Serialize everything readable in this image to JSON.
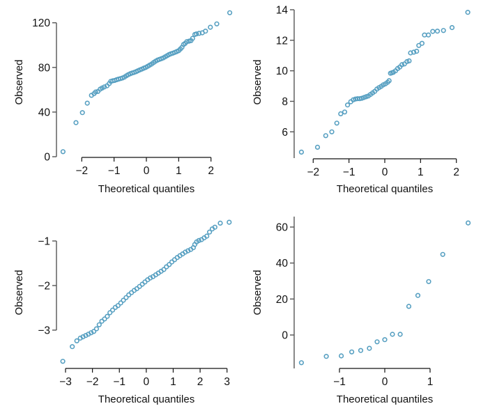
{
  "chart_data": [
    {
      "type": "scatter",
      "title": "",
      "xlabel": "Theoretical quantiles",
      "ylabel": "Observed",
      "xlim": [
        -2.7,
        2.7
      ],
      "ylim": [
        0,
        130
      ],
      "xticks": [
        -2,
        -1,
        0,
        1,
        2
      ],
      "xtick_labels": [
        "−2",
        "−1",
        "0",
        "1",
        "2"
      ],
      "yticks": [
        0,
        40,
        80,
        120
      ],
      "ytick_labels": [
        "0",
        "40",
        "80",
        "120"
      ],
      "grid": false,
      "legend": "none",
      "color": "#569fc1",
      "points": [
        [
          -2.58,
          4.5
        ],
        [
          -2.18,
          30.5
        ],
        [
          -1.98,
          39.5
        ],
        [
          -1.83,
          48
        ],
        [
          -1.7,
          55
        ],
        [
          -1.62,
          56.5
        ],
        [
          -1.57,
          58
        ],
        [
          -1.5,
          58.5
        ],
        [
          -1.43,
          60.5
        ],
        [
          -1.37,
          61.5
        ],
        [
          -1.3,
          62.5
        ],
        [
          -1.22,
          63.5
        ],
        [
          -1.15,
          65.5
        ],
        [
          -1.1,
          67.5
        ],
        [
          -1.04,
          68
        ],
        [
          -0.98,
          68.3
        ],
        [
          -0.92,
          69
        ],
        [
          -0.86,
          69.5
        ],
        [
          -0.8,
          70
        ],
        [
          -0.74,
          70.5
        ],
        [
          -0.68,
          71.3
        ],
        [
          -0.62,
          72.5
        ],
        [
          -0.56,
          73.5
        ],
        [
          -0.5,
          74.3
        ],
        [
          -0.44,
          75
        ],
        [
          -0.38,
          75.5
        ],
        [
          -0.32,
          76.2
        ],
        [
          -0.26,
          77
        ],
        [
          -0.2,
          77.8
        ],
        [
          -0.14,
          78.5
        ],
        [
          -0.08,
          79.3
        ],
        [
          -0.02,
          80
        ],
        [
          0.04,
          81
        ],
        [
          0.1,
          82
        ],
        [
          0.16,
          83
        ],
        [
          0.22,
          84.3
        ],
        [
          0.28,
          85.5
        ],
        [
          0.34,
          86.5
        ],
        [
          0.4,
          87.2
        ],
        [
          0.46,
          87.8
        ],
        [
          0.52,
          88.5
        ],
        [
          0.58,
          89.5
        ],
        [
          0.64,
          90.5
        ],
        [
          0.7,
          91.5
        ],
        [
          0.76,
          92.2
        ],
        [
          0.82,
          92.8
        ],
        [
          0.88,
          93.5
        ],
        [
          0.94,
          94.2
        ],
        [
          1.0,
          95
        ],
        [
          1.05,
          96.5
        ],
        [
          1.1,
          98
        ],
        [
          1.15,
          100.5
        ],
        [
          1.2,
          101.5
        ],
        [
          1.25,
          103
        ],
        [
          1.32,
          103.5
        ],
        [
          1.38,
          104
        ],
        [
          1.43,
          106
        ],
        [
          1.5,
          109.5
        ],
        [
          1.55,
          110
        ],
        [
          1.63,
          110.5
        ],
        [
          1.73,
          111
        ],
        [
          1.83,
          112.5
        ],
        [
          1.98,
          116
        ],
        [
          2.18,
          119
        ],
        [
          2.58,
          129
        ]
      ]
    },
    {
      "type": "scatter",
      "title": "",
      "xlabel": "Theoretical quantiles",
      "ylabel": "Observed",
      "xlim": [
        -2.45,
        2.45
      ],
      "ylim": [
        4.5,
        14
      ],
      "xticks": [
        -2,
        -1,
        0,
        1,
        2
      ],
      "xtick_labels": [
        "−2",
        "−1",
        "0",
        "1",
        "2"
      ],
      "yticks": [
        6,
        8,
        10,
        12,
        14
      ],
      "ytick_labels": [
        "6",
        "8",
        "10",
        "12",
        "14"
      ],
      "grid": false,
      "legend": "none",
      "color": "#569fc1",
      "points": [
        [
          -2.33,
          4.67
        ],
        [
          -1.88,
          4.99
        ],
        [
          -1.65,
          5.75
        ],
        [
          -1.48,
          6.0
        ],
        [
          -1.34,
          6.57
        ],
        [
          -1.23,
          7.18
        ],
        [
          -1.12,
          7.3
        ],
        [
          -1.04,
          7.76
        ],
        [
          -0.95,
          7.97
        ],
        [
          -0.88,
          8.1
        ],
        [
          -0.82,
          8.15
        ],
        [
          -0.76,
          8.17
        ],
        [
          -0.7,
          8.17
        ],
        [
          -0.64,
          8.2
        ],
        [
          -0.58,
          8.25
        ],
        [
          -0.52,
          8.3
        ],
        [
          -0.46,
          8.35
        ],
        [
          -0.4,
          8.45
        ],
        [
          -0.34,
          8.55
        ],
        [
          -0.28,
          8.65
        ],
        [
          -0.22,
          8.8
        ],
        [
          -0.16,
          8.9
        ],
        [
          -0.1,
          8.98
        ],
        [
          -0.04,
          9.08
        ],
        [
          0.02,
          9.15
        ],
        [
          0.08,
          9.25
        ],
        [
          0.12,
          9.35
        ],
        [
          0.16,
          9.84
        ],
        [
          0.2,
          9.87
        ],
        [
          0.24,
          9.9
        ],
        [
          0.3,
          10.0
        ],
        [
          0.36,
          10.15
        ],
        [
          0.42,
          10.25
        ],
        [
          0.48,
          10.4
        ],
        [
          0.55,
          10.45
        ],
        [
          0.62,
          10.6
        ],
        [
          0.68,
          10.65
        ],
        [
          0.72,
          11.17
        ],
        [
          0.81,
          11.22
        ],
        [
          0.89,
          11.28
        ],
        [
          0.95,
          11.66
        ],
        [
          1.04,
          11.8
        ],
        [
          1.11,
          12.35
        ],
        [
          1.22,
          12.35
        ],
        [
          1.34,
          12.58
        ],
        [
          1.47,
          12.6
        ],
        [
          1.64,
          12.64
        ],
        [
          1.88,
          12.83
        ],
        [
          2.32,
          13.83
        ]
      ]
    },
    {
      "type": "scatter",
      "title": "",
      "xlabel": "Theoretical quantiles",
      "ylabel": "Observed",
      "xlim": [
        -3.2,
        3.2
      ],
      "ylim": [
        -3.75,
        -0.55
      ],
      "xticks": [
        -3,
        -2,
        -1,
        0,
        1,
        2,
        3
      ],
      "xtick_labels": [
        "−3",
        "−2",
        "−1",
        "0",
        "1",
        "2",
        "3"
      ],
      "yticks": [
        -3,
        -2,
        -1
      ],
      "ytick_labels": [
        "−3",
        "−2",
        "−1"
      ],
      "grid": false,
      "legend": "none",
      "color": "#569fc1",
      "points": [
        [
          -3.1,
          -3.7
        ],
        [
          -2.75,
          -3.37
        ],
        [
          -2.58,
          -3.24
        ],
        [
          -2.45,
          -3.18
        ],
        [
          -2.35,
          -3.15
        ],
        [
          -2.25,
          -3.12
        ],
        [
          -2.15,
          -3.09
        ],
        [
          -2.05,
          -3.06
        ],
        [
          -1.95,
          -3.03
        ],
        [
          -1.85,
          -2.97
        ],
        [
          -1.75,
          -2.88
        ],
        [
          -1.65,
          -2.8
        ],
        [
          -1.55,
          -2.75
        ],
        [
          -1.45,
          -2.69
        ],
        [
          -1.35,
          -2.61
        ],
        [
          -1.25,
          -2.55
        ],
        [
          -1.15,
          -2.49
        ],
        [
          -1.05,
          -2.45
        ],
        [
          -0.95,
          -2.39
        ],
        [
          -0.85,
          -2.33
        ],
        [
          -0.75,
          -2.27
        ],
        [
          -0.65,
          -2.21
        ],
        [
          -0.55,
          -2.16
        ],
        [
          -0.45,
          -2.11
        ],
        [
          -0.35,
          -2.07
        ],
        [
          -0.25,
          -2.02
        ],
        [
          -0.15,
          -1.97
        ],
        [
          -0.05,
          -1.92
        ],
        [
          0.05,
          -1.87
        ],
        [
          0.15,
          -1.83
        ],
        [
          0.25,
          -1.8
        ],
        [
          0.35,
          -1.76
        ],
        [
          0.45,
          -1.72
        ],
        [
          0.55,
          -1.68
        ],
        [
          0.65,
          -1.64
        ],
        [
          0.75,
          -1.58
        ],
        [
          0.85,
          -1.53
        ],
        [
          0.95,
          -1.47
        ],
        [
          1.05,
          -1.42
        ],
        [
          1.15,
          -1.37
        ],
        [
          1.25,
          -1.33
        ],
        [
          1.35,
          -1.29
        ],
        [
          1.45,
          -1.25
        ],
        [
          1.55,
          -1.22
        ],
        [
          1.65,
          -1.19
        ],
        [
          1.75,
          -1.15
        ],
        [
          1.8,
          -1.08
        ],
        [
          1.87,
          -1.02
        ],
        [
          1.95,
          -0.99
        ],
        [
          2.05,
          -0.97
        ],
        [
          2.15,
          -0.93
        ],
        [
          2.25,
          -0.89
        ],
        [
          2.35,
          -0.8
        ],
        [
          2.45,
          -0.73
        ],
        [
          2.55,
          -0.69
        ],
        [
          2.75,
          -0.6
        ],
        [
          3.08,
          -0.58
        ]
      ]
    },
    {
      "type": "scatter",
      "title": "",
      "xlabel": "Theoretical quantiles",
      "ylabel": "Observed",
      "xlim": [
        -2.05,
        2.05
      ],
      "ylim": [
        -18,
        65
      ],
      "xticks": [
        -1,
        0,
        1
      ],
      "xtick_labels": [
        "−1",
        "0",
        "1"
      ],
      "yticks": [
        0,
        20,
        40,
        60
      ],
      "ytick_labels": [
        "0",
        "20",
        "40",
        "60"
      ],
      "grid": false,
      "legend": "none",
      "color": "#569fc1",
      "points": [
        [
          -1.84,
          -15.4
        ],
        [
          -1.29,
          -11.9
        ],
        [
          -0.96,
          -11.6
        ],
        [
          -0.73,
          -9.4
        ],
        [
          -0.53,
          -8.6
        ],
        [
          -0.34,
          -7.4
        ],
        [
          -0.17,
          -3.8
        ],
        [
          0.0,
          -2.6
        ],
        [
          0.17,
          0.4
        ],
        [
          0.34,
          0.4
        ],
        [
          0.53,
          15.9
        ],
        [
          0.73,
          22.0
        ],
        [
          0.97,
          29.7
        ],
        [
          1.28,
          44.8
        ],
        [
          1.84,
          62.3
        ]
      ]
    }
  ]
}
